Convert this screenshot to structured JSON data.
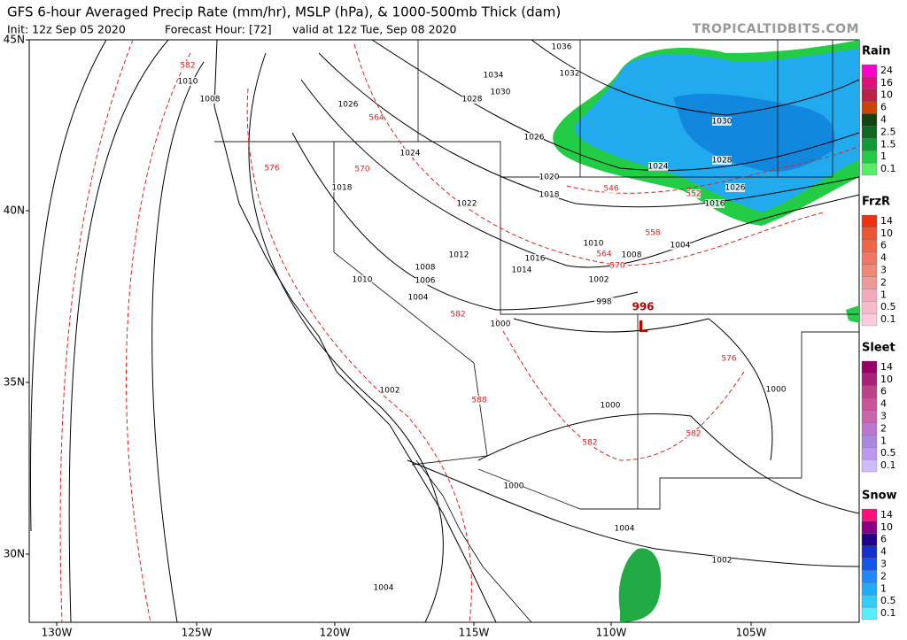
{
  "header": {
    "title": "GFS 6-hour Averaged Precip Rate (mm/hr), MSLP (hPa), & 1000-500mb Thick (dam)",
    "init": "Init: 12z Sep 05 2020",
    "forecast_hour": "Forecast Hour: [72]",
    "valid": "valid at 12z Tue, Sep 08 2020",
    "credit": "TROPICALTIDBITS.COM"
  },
  "map": {
    "lat_labels": [
      "45N",
      "40N",
      "35N",
      "30N"
    ],
    "lon_labels": [
      "130W",
      "125W",
      "120W",
      "115W",
      "110W",
      "105W"
    ],
    "isobar_labels": [
      "1010",
      "1008",
      "1026",
      "1024",
      "1018",
      "1022",
      "1012",
      "1008",
      "1006",
      "1010",
      "1004",
      "1000",
      "1002",
      "1000",
      "1000",
      "1004",
      "1002",
      "1004",
      "1036",
      "1034",
      "1032",
      "1030",
      "1028",
      "1026",
      "1020",
      "1018",
      "1016",
      "1014",
      "1010",
      "1008",
      "1004",
      "1002",
      "998",
      "1030",
      "1028",
      "1024",
      "1026",
      "1016",
      "1000"
    ],
    "thickness_labels": [
      "582",
      "564",
      "576",
      "570",
      "546",
      "552",
      "558",
      "564",
      "570",
      "582",
      "588",
      "582",
      "582",
      "576"
    ],
    "low": {
      "pressure": "996",
      "symbol": "L"
    }
  },
  "legend": [
    {
      "title": "Rain",
      "levels": [
        "24",
        "16",
        "10",
        "6",
        "4",
        "2.5",
        "1.5",
        "1",
        "0.1"
      ]
    },
    {
      "title": "FrzR",
      "levels": [
        "14",
        "10",
        "6",
        "4",
        "3",
        "2",
        "1",
        "0.5",
        "0.1"
      ]
    },
    {
      "title": "Sleet",
      "levels": [
        "14",
        "10",
        "6",
        "4",
        "3",
        "2",
        "1",
        "0.5",
        "0.1"
      ]
    },
    {
      "title": "Snow",
      "levels": [
        "14",
        "10",
        "6",
        "4",
        "3",
        "2",
        "1",
        "0.5",
        "0.1"
      ]
    }
  ]
}
